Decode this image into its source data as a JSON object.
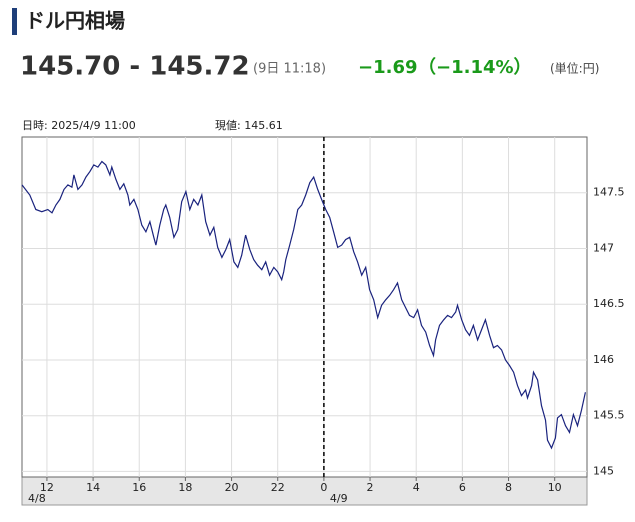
{
  "header": {
    "title": "ドル円相場"
  },
  "quote": {
    "rate": "145.70 - 145.72",
    "time": "(9日 11:18)",
    "change": "−1.69",
    "change_pct": "（−1.14%）",
    "unit": "(単位:円)"
  },
  "chart_data": {
    "type": "line",
    "info": {
      "datetime": "日時: 2025/4/9 11:00",
      "current": "現値: 145.61"
    },
    "x": [
      10.92,
      11.26,
      11.52,
      11.78,
      12.04,
      12.22,
      12.39,
      12.56,
      12.74,
      12.91,
      13.08,
      13.17,
      13.34,
      13.52,
      13.69,
      13.86,
      14.03,
      14.21,
      14.38,
      14.55,
      14.73,
      14.81,
      14.99,
      15.16,
      15.33,
      15.51,
      15.59,
      15.77,
      15.94,
      16.11,
      16.29,
      16.46,
      16.63,
      16.72,
      16.89,
      17.06,
      17.15,
      17.32,
      17.5,
      17.67,
      17.84,
      18.02,
      18.19,
      18.36,
      18.54,
      18.71,
      18.88,
      19.06,
      19.23,
      19.4,
      19.58,
      19.75,
      19.92,
      20.1,
      20.27,
      20.44,
      20.61,
      20.79,
      20.96,
      21.13,
      21.31,
      21.48,
      21.65,
      21.83,
      22.0,
      22.17,
      22.26,
      22.35,
      22.52,
      22.69,
      22.87,
      23.04,
      23.21,
      23.39,
      23.56,
      23.73,
      23.9,
      24.08,
      24.25,
      24.42,
      24.6,
      24.77,
      24.94,
      25.12,
      25.29,
      25.46,
      25.64,
      25.81,
      25.98,
      26.16,
      26.33,
      26.5,
      26.68,
      26.85,
      27.02,
      27.19,
      27.37,
      27.54,
      27.71,
      27.89,
      28.06,
      28.23,
      28.41,
      28.58,
      28.75,
      28.84,
      29.01,
      29.19,
      29.36,
      29.53,
      29.71,
      29.79,
      29.97,
      30.14,
      30.31,
      30.48,
      30.66,
      30.83,
      31.0,
      31.18,
      31.35,
      31.52,
      31.7,
      31.87,
      32.04,
      32.22,
      32.39,
      32.56,
      32.74,
      32.82,
      33.0,
      33.08,
      33.26,
      33.43,
      33.6,
      33.69,
      33.86,
      34.03,
      34.12,
      34.29,
      34.47,
      34.64,
      34.81,
      34.99,
      35.16,
      35.33
    ],
    "values": [
      147.57,
      147.48,
      147.35,
      147.33,
      147.35,
      147.32,
      147.39,
      147.44,
      147.53,
      147.57,
      147.55,
      147.66,
      147.53,
      147.57,
      147.64,
      147.69,
      147.75,
      147.73,
      147.78,
      147.75,
      147.66,
      147.73,
      147.62,
      147.53,
      147.58,
      147.48,
      147.39,
      147.44,
      147.35,
      147.21,
      147.15,
      147.24,
      147.1,
      147.03,
      147.21,
      147.35,
      147.39,
      147.28,
      147.1,
      147.17,
      147.42,
      147.51,
      147.35,
      147.44,
      147.39,
      147.48,
      147.24,
      147.12,
      147.19,
      147.01,
      146.92,
      146.99,
      147.08,
      146.88,
      146.83,
      146.94,
      147.12,
      146.99,
      146.9,
      146.85,
      146.81,
      146.88,
      146.76,
      146.83,
      146.79,
      146.72,
      146.79,
      146.9,
      147.03,
      147.17,
      147.35,
      147.39,
      147.48,
      147.59,
      147.64,
      147.53,
      147.44,
      147.35,
      147.28,
      147.15,
      147.01,
      147.03,
      147.08,
      147.1,
      146.97,
      146.88,
      146.76,
      146.83,
      146.63,
      146.54,
      146.38,
      146.49,
      146.54,
      146.58,
      146.63,
      146.69,
      146.54,
      146.47,
      146.4,
      146.38,
      146.45,
      146.31,
      146.25,
      146.13,
      146.04,
      146.18,
      146.31,
      146.36,
      146.4,
      146.38,
      146.43,
      146.49,
      146.36,
      146.27,
      146.22,
      146.31,
      146.18,
      146.27,
      146.36,
      146.22,
      146.11,
      146.13,
      146.09,
      146.0,
      145.95,
      145.89,
      145.77,
      145.68,
      145.73,
      145.66,
      145.77,
      145.89,
      145.82,
      145.59,
      145.46,
      145.28,
      145.21,
      145.3,
      145.48,
      145.51,
      145.41,
      145.35,
      145.51,
      145.41,
      145.55,
      145.71
    ],
    "color": "#1a237e",
    "xlim": [
      10.92,
      35.4
    ],
    "ylim": [
      144.95,
      148.0
    ],
    "xticks": [
      12,
      14,
      16,
      18,
      20,
      22,
      {
        "value": 24,
        "label": "0"
      },
      {
        "value": 26,
        "label": "2"
      },
      {
        "value": 28,
        "label": "4"
      },
      {
        "value": 30,
        "label": "6"
      },
      {
        "value": 32,
        "label": "8"
      },
      {
        "value": 34,
        "label": "10"
      }
    ],
    "yticks": [
      145,
      145.5,
      146,
      146.5,
      147,
      147.5
    ],
    "grid": true,
    "day_labels": [
      {
        "value": 10.92,
        "label": "4/8"
      },
      {
        "value": 24,
        "label": "4/9"
      }
    ],
    "divider": 24
  }
}
